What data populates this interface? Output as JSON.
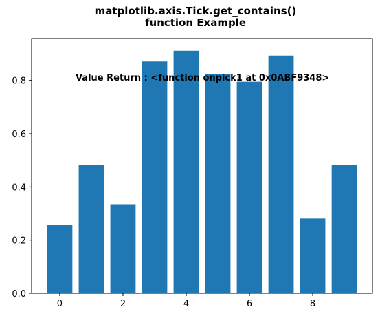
{
  "chart_data": {
    "type": "bar",
    "title": [
      "matplotlib.axis.Tick.get_contains()",
      "function Example"
    ],
    "xlabel": "",
    "ylabel": "",
    "x": [
      0,
      1,
      2,
      3,
      4,
      5,
      6,
      7,
      8,
      9
    ],
    "values": [
      0.256,
      0.481,
      0.335,
      0.871,
      0.911,
      0.823,
      0.795,
      0.893,
      0.281,
      0.483
    ],
    "bar_width": 0.8,
    "xlim": [
      -0.89,
      9.89
    ],
    "ylim": [
      0,
      0.957
    ],
    "xticks": [
      0,
      2,
      4,
      6,
      8
    ],
    "yticks": [
      0.0,
      0.2,
      0.4,
      0.6,
      0.8
    ],
    "ytick_labels": [
      "0.0",
      "0.2",
      "0.4",
      "0.6",
      "0.8"
    ],
    "grid": false,
    "bar_color": "#1f77b4",
    "annotation": {
      "text": "Value Return : <function onpick1 at 0x0ABF9348>",
      "x": 0.5,
      "y": 0.8
    }
  }
}
